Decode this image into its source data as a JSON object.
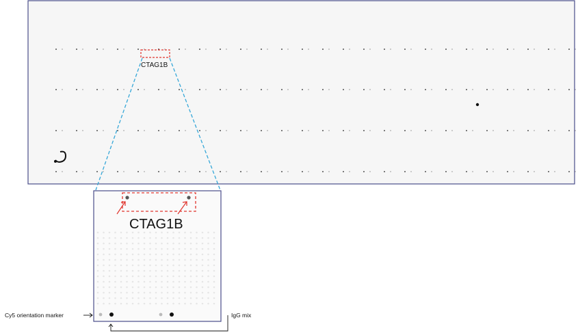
{
  "labels": {
    "overview_protein": "CTAG1B",
    "zoom_protein": "CTAG1B",
    "orientation_marker": "Cy5 orientation marker",
    "igg_mix": "IgG mix"
  },
  "colors": {
    "frame": "#4a4d8a",
    "highlight_box": "#e0342d",
    "zoom_guide": "#35a7d8",
    "spot": "#1a1a1a",
    "panel_bg": "#f6f6f6"
  }
}
